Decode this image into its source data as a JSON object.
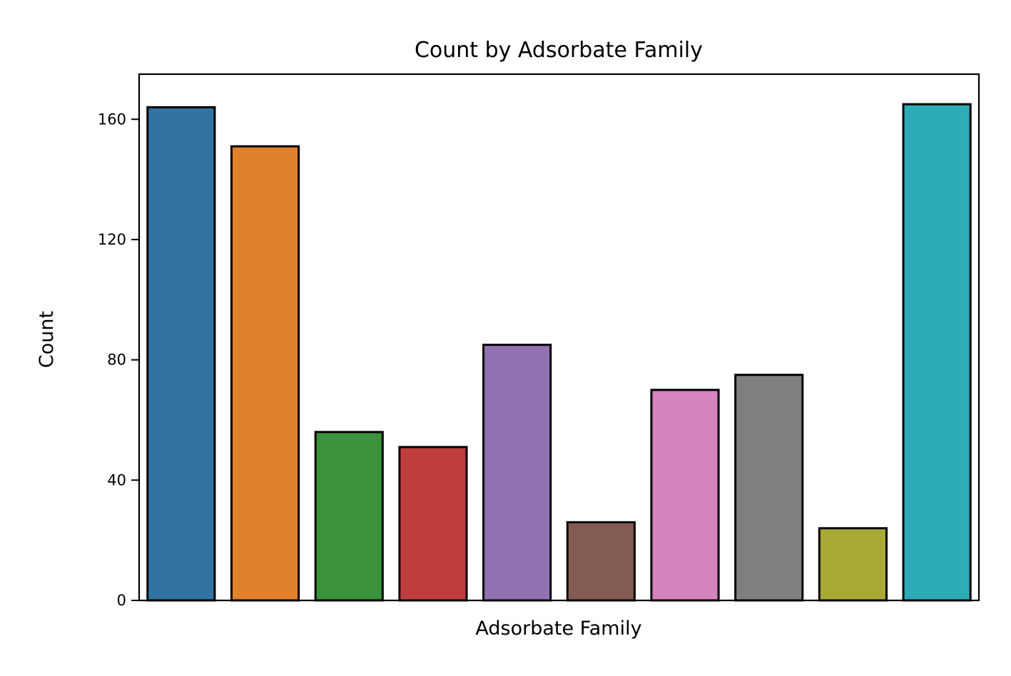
{
  "chart_data": {
    "type": "bar",
    "title": "Count by Adsorbate Family",
    "xlabel": "Adsorbate Family",
    "ylabel": "Count",
    "ylim": [
      0,
      175
    ],
    "yticks": [
      0,
      40,
      80,
      120,
      160
    ],
    "categories": [
      "",
      "",
      "",
      "",
      "",
      "",
      "",
      "",
      "",
      ""
    ],
    "values": [
      164,
      151,
      56,
      51,
      85,
      26,
      70,
      75,
      24,
      165
    ],
    "colors": [
      "#3274a1",
      "#e1812c",
      "#3a923a",
      "#c03d3e",
      "#9372b2",
      "#845b53",
      "#d684bd",
      "#7f7f7f",
      "#a9aa35",
      "#2eabb8"
    ],
    "bar_edge_color": "#000000",
    "grid": false,
    "legend": "none"
  }
}
